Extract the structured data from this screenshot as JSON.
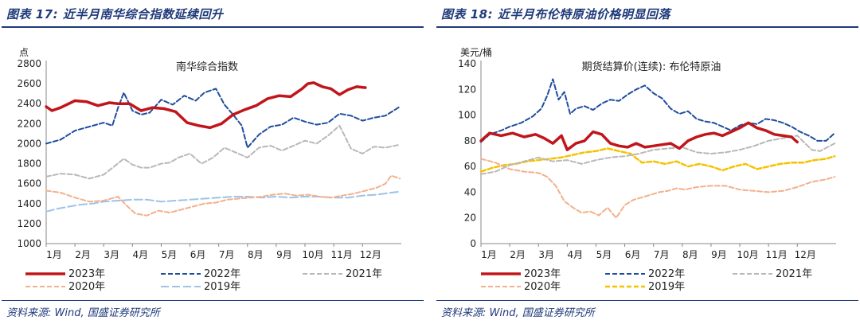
{
  "colors": {
    "header": "#1f3a7a",
    "s2023": "#c0161b",
    "s2022": "#1f4e9c",
    "s2021": "#b8b8b8",
    "s2020": "#f2b08c",
    "s2019_left": "#9dc3e6",
    "s2019_right": "#f5c200"
  },
  "left": {
    "fig_title": "图表 17:  近半月南华综合指数延续回升",
    "source": "资料来源:  Wind,  国盛证券研究所",
    "chart_data": {
      "type": "line",
      "title": "南华综合指数",
      "ylabel": "点",
      "ylim": [
        1000,
        2800
      ],
      "yticks": [
        "1000",
        "1200",
        "1400",
        "1600",
        "1800",
        "2000",
        "2200",
        "2400",
        "2600",
        "2800"
      ],
      "months": [
        "1月",
        "2月",
        "3月",
        "4月",
        "5月",
        "6月",
        "7月",
        "8月",
        "9月",
        "10月",
        "11月",
        "12月"
      ],
      "series": [
        {
          "name": "2023年",
          "key": "s2023",
          "dash": "",
          "width": 3.5,
          "x": [
            0,
            0.2,
            0.5,
            1.0,
            1.4,
            1.8,
            2.2,
            2.5,
            2.9,
            3.3,
            3.7,
            4.1,
            4.5,
            4.9,
            5.3,
            5.7,
            6.1,
            6.5,
            6.9,
            7.3,
            7.7,
            8.1,
            8.5,
            8.9,
            9.1,
            9.3,
            9.6,
            9.9,
            10.2,
            10.5,
            10.8,
            11.1
          ],
          "y": [
            2370,
            2330,
            2360,
            2430,
            2420,
            2380,
            2410,
            2400,
            2400,
            2330,
            2360,
            2350,
            2320,
            2210,
            2180,
            2160,
            2200,
            2290,
            2340,
            2380,
            2450,
            2480,
            2470,
            2550,
            2600,
            2610,
            2570,
            2550,
            2490,
            2540,
            2570,
            2560
          ]
        },
        {
          "name": "2022年",
          "key": "s2022",
          "dash": "6,3",
          "width": 2,
          "x": [
            0,
            0.5,
            1.0,
            1.5,
            2.0,
            2.3,
            2.5,
            2.7,
            3.0,
            3.3,
            3.6,
            4.0,
            4.4,
            4.8,
            5.2,
            5.5,
            5.9,
            6.2,
            6.5,
            6.8,
            7.0,
            7.4,
            7.8,
            8.2,
            8.6,
            9.0,
            9.4,
            9.8,
            10.2,
            10.6,
            11.0,
            11.4,
            11.8,
            12.3
          ],
          "y": [
            2000,
            2040,
            2130,
            2170,
            2210,
            2180,
            2360,
            2510,
            2330,
            2290,
            2310,
            2440,
            2390,
            2480,
            2430,
            2510,
            2550,
            2390,
            2290,
            2180,
            1960,
            2090,
            2170,
            2190,
            2260,
            2220,
            2190,
            2210,
            2300,
            2280,
            2230,
            2260,
            2280,
            2370
          ]
        },
        {
          "name": "2021年",
          "key": "s2021",
          "dash": "6,3",
          "width": 2,
          "x": [
            0,
            0.5,
            1.0,
            1.5,
            2.0,
            2.4,
            2.7,
            3.0,
            3.3,
            3.6,
            4.0,
            4.3,
            4.6,
            5.0,
            5.4,
            5.8,
            6.2,
            6.6,
            7.0,
            7.4,
            7.8,
            8.2,
            8.6,
            9.0,
            9.4,
            9.8,
            10.2,
            10.6,
            11.0,
            11.4,
            11.8,
            12.3
          ],
          "y": [
            1670,
            1700,
            1690,
            1650,
            1690,
            1780,
            1850,
            1790,
            1760,
            1760,
            1800,
            1810,
            1860,
            1900,
            1800,
            1860,
            1960,
            1910,
            1860,
            1960,
            1980,
            1930,
            1980,
            2030,
            2000,
            2080,
            2180,
            1950,
            1900,
            1970,
            1960,
            1990
          ]
        },
        {
          "name": "2020年",
          "key": "s2020",
          "dash": "6,3",
          "width": 2,
          "x": [
            0,
            0.5,
            1.0,
            1.5,
            2.0,
            2.5,
            2.8,
            3.1,
            3.5,
            3.9,
            4.3,
            4.7,
            5.1,
            5.5,
            5.9,
            6.3,
            6.7,
            7.1,
            7.5,
            7.9,
            8.3,
            8.7,
            9.1,
            9.5,
            9.9,
            10.3,
            10.7,
            11.1,
            11.5,
            11.8,
            12.0,
            12.3
          ],
          "y": [
            1530,
            1510,
            1460,
            1420,
            1430,
            1470,
            1380,
            1300,
            1280,
            1330,
            1310,
            1340,
            1370,
            1400,
            1410,
            1440,
            1450,
            1460,
            1470,
            1490,
            1500,
            1480,
            1490,
            1470,
            1460,
            1480,
            1500,
            1530,
            1560,
            1600,
            1680,
            1650
          ]
        },
        {
          "name": "2019年",
          "key": "s2019_left",
          "dash": "10,4",
          "width": 2,
          "x": [
            0,
            0.4,
            0.8,
            1.2,
            1.6,
            2.0,
            2.5,
            3.0,
            3.5,
            4.0,
            4.5,
            5.0,
            5.5,
            6.0,
            6.5,
            7.0,
            7.5,
            8.0,
            8.5,
            9.0,
            9.5,
            10.0,
            10.5,
            11.0,
            11.5,
            12.0,
            12.3
          ],
          "y": [
            1320,
            1350,
            1370,
            1390,
            1400,
            1420,
            1430,
            1440,
            1440,
            1420,
            1430,
            1440,
            1450,
            1460,
            1470,
            1470,
            1460,
            1470,
            1460,
            1470,
            1470,
            1460,
            1460,
            1480,
            1490,
            1510,
            1520
          ]
        }
      ]
    }
  },
  "right": {
    "fig_title": "图表 18:  近半月布伦特原油价格明显回落",
    "source": "资料来源:  Wind,  国盛证券研究所",
    "chart_data": {
      "type": "line",
      "title": "期货结算价(连续):  布伦特原油",
      "ylabel": "美元/桶",
      "ylim": [
        0,
        140
      ],
      "yticks": [
        "0",
        "20",
        "40",
        "60",
        "80",
        "100",
        "120",
        "140"
      ],
      "months": [
        "1月",
        "2月",
        "3月",
        "4月",
        "5月",
        "6月",
        "7月",
        "8月",
        "9月",
        "10月",
        "11月",
        "12月"
      ],
      "series": [
        {
          "name": "2023年",
          "key": "s2023",
          "dash": "",
          "width": 3.5,
          "x": [
            0,
            0.3,
            0.7,
            1.1,
            1.5,
            1.9,
            2.2,
            2.5,
            2.8,
            3.0,
            3.3,
            3.6,
            3.9,
            4.2,
            4.5,
            4.8,
            5.1,
            5.4,
            5.7,
            6.0,
            6.3,
            6.6,
            6.9,
            7.2,
            7.5,
            7.8,
            8.1,
            8.4,
            8.7,
            9.0,
            9.3,
            9.6,
            9.9,
            10.2,
            10.5,
            10.8,
            11.0
          ],
          "y": [
            80,
            86,
            84,
            86,
            83,
            85,
            82,
            78,
            84,
            73,
            78,
            80,
            87,
            85,
            78,
            76,
            75,
            78,
            75,
            76,
            77,
            78,
            74,
            80,
            83,
            85,
            86,
            84,
            87,
            90,
            94,
            90,
            88,
            85,
            84,
            83,
            79
          ]
        },
        {
          "name": "2022年",
          "key": "s2022",
          "dash": "6,3",
          "width": 2,
          "x": [
            0,
            0.3,
            0.7,
            1.0,
            1.4,
            1.8,
            2.1,
            2.3,
            2.5,
            2.7,
            2.9,
            3.1,
            3.3,
            3.6,
            3.9,
            4.2,
            4.5,
            4.8,
            5.1,
            5.4,
            5.7,
            6.0,
            6.3,
            6.6,
            6.9,
            7.2,
            7.5,
            7.8,
            8.1,
            8.4,
            8.7,
            9.0,
            9.3,
            9.6,
            9.9,
            10.2,
            10.5,
            10.8,
            11.1,
            11.4,
            11.7,
            12.0,
            12.3
          ],
          "y": [
            79,
            85,
            88,
            91,
            94,
            99,
            105,
            115,
            128,
            112,
            118,
            101,
            105,
            107,
            104,
            109,
            112,
            111,
            116,
            120,
            123,
            117,
            113,
            105,
            101,
            103,
            97,
            95,
            94,
            91,
            88,
            92,
            94,
            93,
            97,
            96,
            94,
            91,
            87,
            84,
            80,
            80,
            86
          ]
        },
        {
          "name": "2021年",
          "key": "s2021",
          "dash": "6,3",
          "width": 2,
          "x": [
            0,
            0.5,
            1.0,
            1.5,
            2.0,
            2.5,
            3.0,
            3.5,
            4.0,
            4.5,
            5.0,
            5.5,
            6.0,
            6.5,
            7.0,
            7.5,
            8.0,
            8.5,
            9.0,
            9.5,
            10.0,
            10.5,
            11.0,
            11.5,
            11.8,
            12.3
          ],
          "y": [
            54,
            56,
            61,
            64,
            67,
            64,
            65,
            62,
            65,
            67,
            68,
            70,
            73,
            74,
            75,
            71,
            70,
            71,
            73,
            76,
            80,
            82,
            84,
            73,
            72,
            78
          ]
        },
        {
          "name": "2020年",
          "key": "s2020",
          "dash": "6,3",
          "width": 2,
          "x": [
            0,
            0.5,
            1.0,
            1.5,
            2.0,
            2.3,
            2.6,
            2.9,
            3.2,
            3.5,
            3.8,
            4.1,
            4.4,
            4.7,
            5.0,
            5.3,
            5.6,
            5.9,
            6.2,
            6.5,
            6.8,
            7.1,
            7.5,
            8.0,
            8.5,
            9.0,
            9.5,
            10.0,
            10.5,
            11.0,
            11.5,
            12.0,
            12.3
          ],
          "y": [
            66,
            63,
            58,
            56,
            55,
            52,
            45,
            33,
            28,
            24,
            25,
            22,
            28,
            20,
            30,
            34,
            36,
            38,
            40,
            41,
            43,
            42,
            44,
            45,
            45,
            42,
            41,
            40,
            41,
            44,
            48,
            50,
            52
          ]
        },
        {
          "name": "2019年",
          "key": "s2019_right",
          "dash": "6,3",
          "width": 2.5,
          "x": [
            0,
            0.4,
            0.8,
            1.2,
            1.6,
            2.0,
            2.4,
            2.8,
            3.2,
            3.6,
            4.0,
            4.4,
            4.8,
            5.2,
            5.6,
            6.0,
            6.4,
            6.8,
            7.2,
            7.6,
            8.0,
            8.4,
            8.8,
            9.2,
            9.6,
            10.0,
            10.4,
            10.8,
            11.2,
            11.6,
            12.0,
            12.3
          ],
          "y": [
            56,
            59,
            61,
            62,
            64,
            65,
            66,
            67,
            69,
            71,
            72,
            74,
            72,
            70,
            63,
            64,
            62,
            64,
            60,
            62,
            60,
            57,
            60,
            62,
            58,
            60,
            62,
            63,
            63,
            65,
            66,
            68
          ]
        }
      ]
    }
  }
}
